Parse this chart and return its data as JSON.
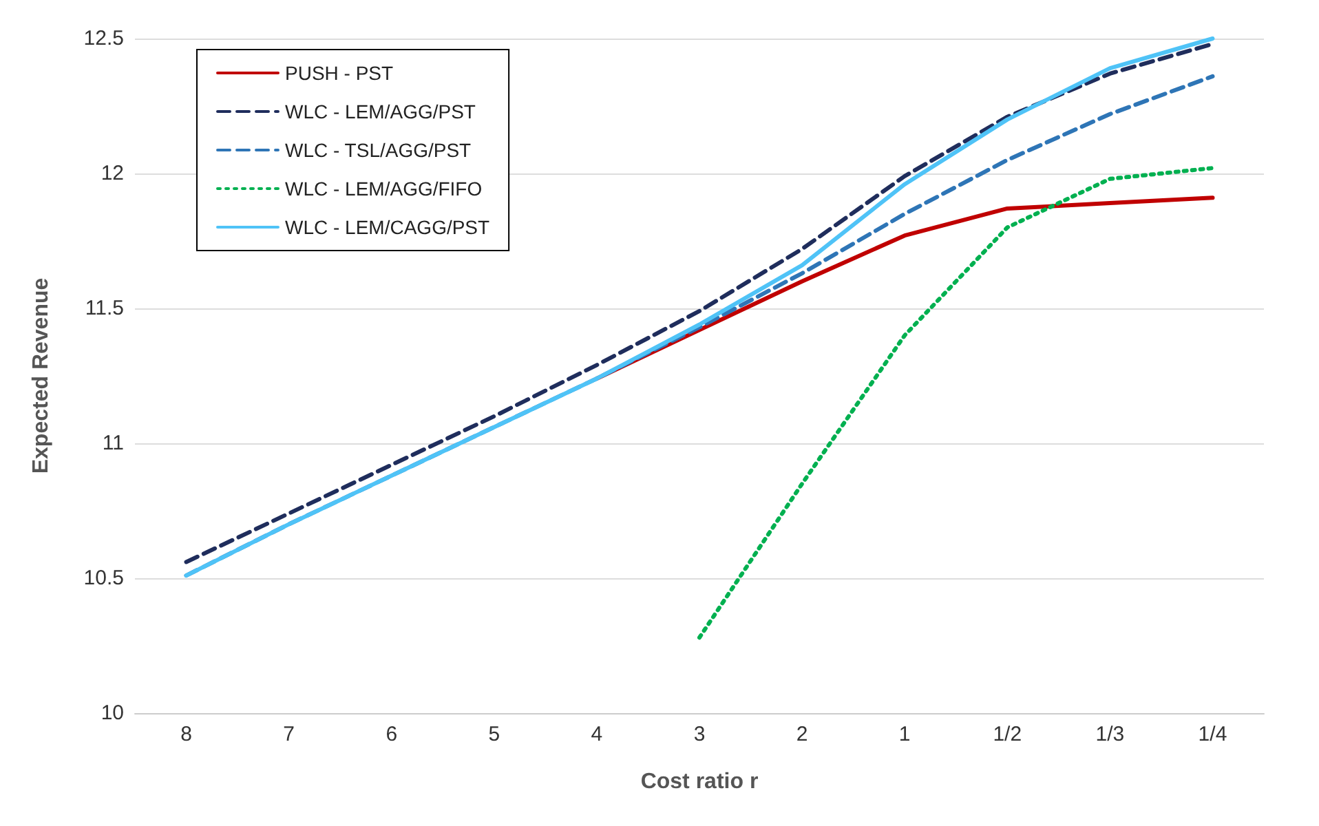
{
  "chart_data": {
    "type": "line",
    "xlabel": "Cost ratio r",
    "ylabel": "Expected Revenue",
    "categories": [
      "8",
      "7",
      "6",
      "5",
      "4",
      "3",
      "2",
      "1",
      "1/2",
      "1/3",
      "1/4"
    ],
    "series": [
      {
        "name": "PUSH - PST",
        "color": "#c00000",
        "line_style": "solid",
        "values": [
          null,
          null,
          null,
          null,
          11.24,
          11.42,
          11.6,
          11.77,
          11.87,
          11.89,
          11.91
        ]
      },
      {
        "name": "WLC - LEM/AGG/PST",
        "color": "#1f2d5c",
        "line_style": "dashed",
        "values": [
          10.56,
          10.74,
          10.92,
          11.1,
          11.29,
          11.49,
          11.72,
          11.99,
          12.21,
          12.37,
          12.48
        ]
      },
      {
        "name": "WLC - TSL/AGG/PST",
        "color": "#2e75b6",
        "line_style": "dashed",
        "values": [
          10.51,
          10.7,
          10.88,
          11.06,
          11.24,
          11.43,
          11.63,
          11.85,
          12.05,
          12.22,
          12.36
        ]
      },
      {
        "name": "WLC - LEM/AGG/FIFO",
        "color": "#00b050",
        "line_style": "dotted",
        "values": [
          null,
          null,
          null,
          null,
          null,
          10.28,
          10.85,
          11.4,
          11.8,
          11.98,
          12.02
        ]
      },
      {
        "name": "WLC - LEM/CAGG/PST",
        "color": "#4fc3f7",
        "line_style": "solid",
        "values": [
          10.51,
          10.7,
          10.88,
          11.06,
          11.24,
          11.44,
          11.66,
          11.96,
          12.2,
          12.39,
          12.5
        ]
      }
    ],
    "ylim": [
      10,
      12.5
    ],
    "yticks": [
      10,
      10.5,
      11,
      11.5,
      12,
      12.5
    ],
    "grid": "y",
    "legend": "top left",
    "marker": "none"
  }
}
